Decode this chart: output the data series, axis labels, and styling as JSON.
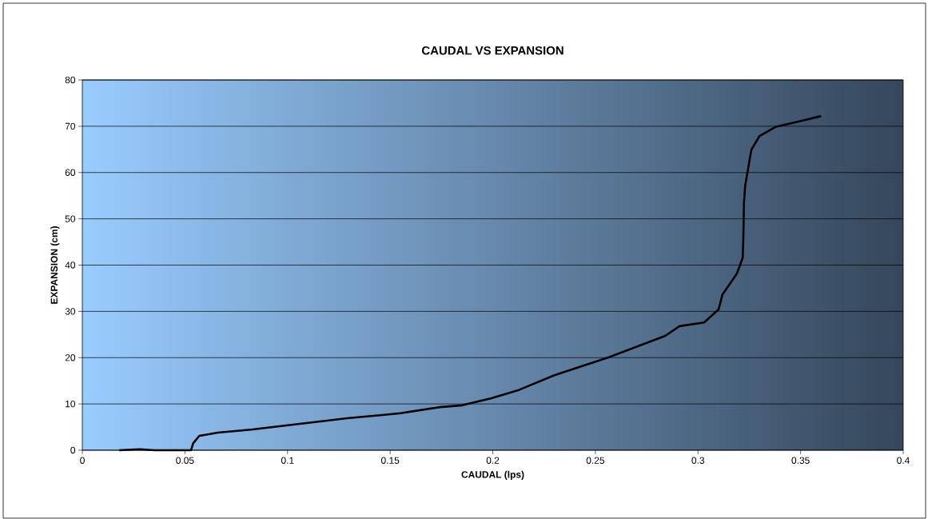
{
  "chart_data": {
    "type": "line",
    "title": "CAUDAL VS EXPANSION",
    "xlabel": "CAUDAL (lps)",
    "ylabel": "EXPANSION (cm)",
    "xlim": [
      0,
      0.4
    ],
    "xticks": [
      0,
      0.05,
      0.1,
      0.15,
      0.2,
      0.25,
      0.3,
      0.35,
      0.4
    ],
    "ylim": [
      0,
      80
    ],
    "yticks": [
      0,
      10,
      20,
      30,
      40,
      50,
      60,
      70,
      80
    ],
    "grid": "y",
    "marker": "none",
    "line_style": "solid",
    "series": [
      {
        "color": "#000000",
        "x": [
          0.018,
          0.028,
          0.035,
          0.053,
          0.054,
          0.057,
          0.066,
          0.083,
          0.129,
          0.146,
          0.155,
          0.174,
          0.185,
          0.199,
          0.212,
          0.23,
          0.256,
          0.284,
          0.291,
          0.303,
          0.31,
          0.312,
          0.319,
          0.3218,
          0.3221,
          0.3224,
          0.323,
          0.326,
          0.33,
          0.338,
          0.349,
          0.36
        ],
        "values": [
          0,
          0.2,
          0,
          0,
          1.5,
          3.1,
          3.8,
          4.5,
          6.9,
          7.6,
          8.0,
          9.3,
          9.7,
          11.2,
          12.9,
          16.2,
          20.0,
          24.7,
          26.8,
          27.6,
          30.4,
          33.7,
          38.2,
          41.6,
          45.9,
          53.5,
          57.2,
          64.9,
          67.9,
          69.9,
          71.0,
          72.2
        ]
      }
    ]
  }
}
